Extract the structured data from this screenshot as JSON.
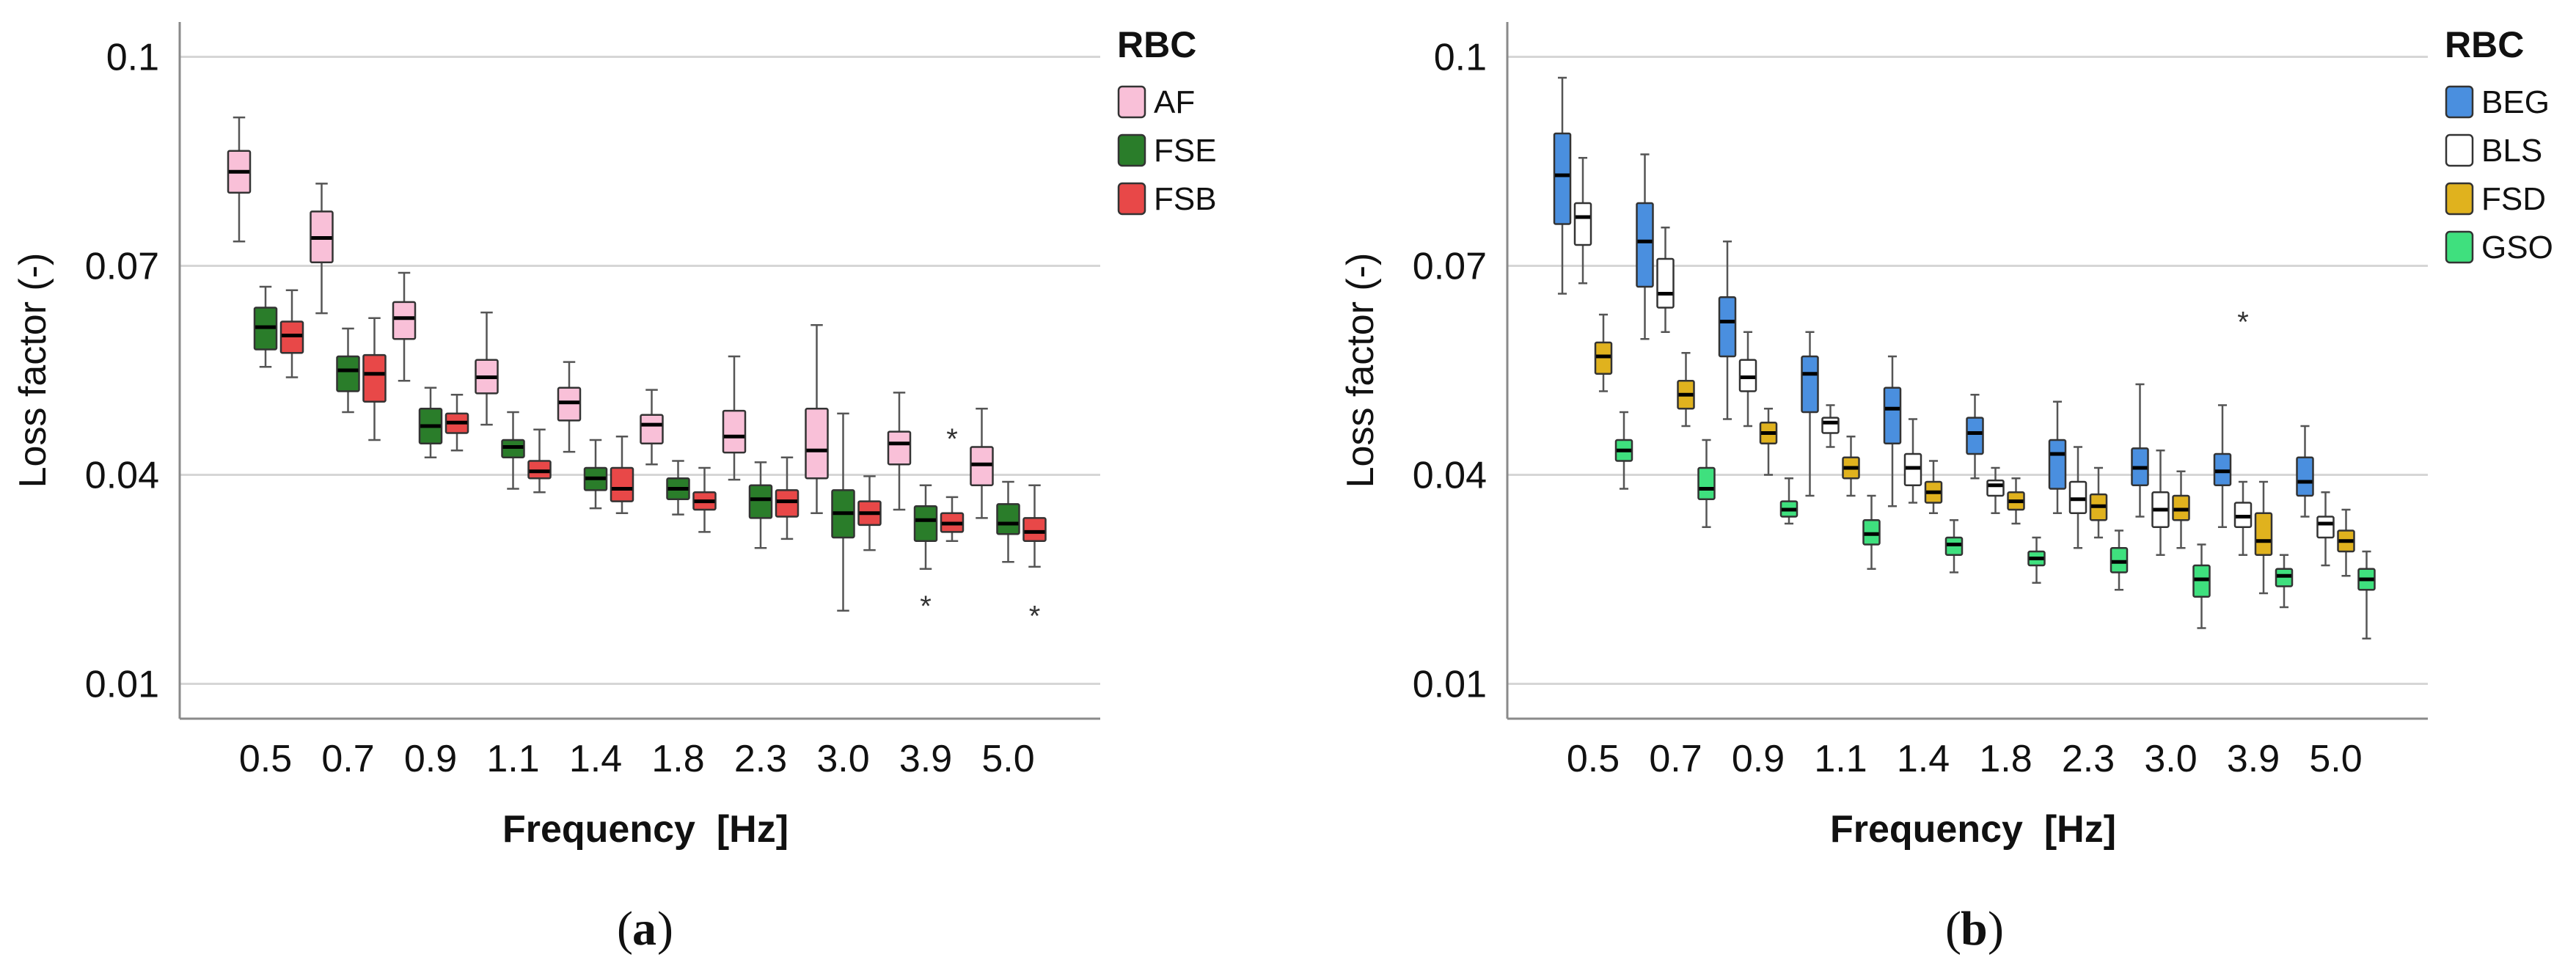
{
  "chart_data": [
    {
      "type": "boxplot",
      "panel_caption": "a",
      "xlabel": "Frequency  [Hz]",
      "ylabel": "Loss factor (-)",
      "ylim": [
        0.005,
        0.105
      ],
      "yticks": [
        0.01,
        0.04,
        0.07,
        0.1
      ],
      "ytick_labels": [
        "0.01",
        "0.04",
        "0.07",
        "0.1"
      ],
      "categories": [
        "0.5",
        "0.7",
        "0.9",
        "1.1",
        "1.4",
        "1.8",
        "2.3",
        "3.0",
        "3.9",
        "5.0"
      ],
      "legend_title": "RBC",
      "legend_position": "right",
      "series": [
        {
          "name": "AF",
          "color": "#f9c0d8",
          "boxes": [
            {
              "min": 0.0735,
              "q1": 0.0805,
              "median": 0.0835,
              "q3": 0.0865,
              "max": 0.0913
            },
            {
              "min": 0.0632,
              "q1": 0.0705,
              "median": 0.074,
              "q3": 0.0778,
              "max": 0.0818
            },
            {
              "min": 0.0535,
              "q1": 0.0595,
              "median": 0.0625,
              "q3": 0.0648,
              "max": 0.069
            },
            {
              "min": 0.0472,
              "q1": 0.0517,
              "median": 0.054,
              "q3": 0.0565,
              "max": 0.0633
            },
            {
              "min": 0.0433,
              "q1": 0.0478,
              "median": 0.0504,
              "q3": 0.0525,
              "max": 0.0562
            },
            {
              "min": 0.0415,
              "q1": 0.0445,
              "median": 0.0472,
              "q3": 0.0486,
              "max": 0.0522
            },
            {
              "min": 0.0393,
              "q1": 0.0432,
              "median": 0.0455,
              "q3": 0.0492,
              "max": 0.057
            },
            {
              "min": 0.0345,
              "q1": 0.0395,
              "median": 0.0435,
              "q3": 0.0495,
              "max": 0.0615
            },
            {
              "min": 0.035,
              "q1": 0.0415,
              "median": 0.0445,
              "q3": 0.0462,
              "max": 0.0518
            },
            {
              "min": 0.0338,
              "q1": 0.0385,
              "median": 0.0415,
              "q3": 0.044,
              "max": 0.0495
            }
          ],
          "outliers": []
        },
        {
          "name": "FSE",
          "color": "#2a7d2a",
          "boxes": [
            {
              "min": 0.0555,
              "q1": 0.058,
              "median": 0.0612,
              "q3": 0.064,
              "max": 0.067
            },
            {
              "min": 0.049,
              "q1": 0.052,
              "median": 0.055,
              "q3": 0.057,
              "max": 0.061
            },
            {
              "min": 0.0425,
              "q1": 0.0445,
              "median": 0.047,
              "q3": 0.0495,
              "max": 0.0525
            },
            {
              "min": 0.038,
              "q1": 0.0425,
              "median": 0.044,
              "q3": 0.045,
              "max": 0.049
            },
            {
              "min": 0.0352,
              "q1": 0.0378,
              "median": 0.0395,
              "q3": 0.041,
              "max": 0.045
            },
            {
              "min": 0.0343,
              "q1": 0.0365,
              "median": 0.038,
              "q3": 0.0395,
              "max": 0.042
            },
            {
              "min": 0.0295,
              "q1": 0.0338,
              "median": 0.0365,
              "q3": 0.0385,
              "max": 0.0418
            },
            {
              "min": 0.0205,
              "q1": 0.031,
              "median": 0.0345,
              "q3": 0.0378,
              "max": 0.0488
            },
            {
              "min": 0.0265,
              "q1": 0.0305,
              "median": 0.0335,
              "q3": 0.0355,
              "max": 0.0385
            },
            {
              "min": 0.0275,
              "q1": 0.0315,
              "median": 0.033,
              "q3": 0.0358,
              "max": 0.039
            }
          ],
          "outliers": [
            {
              "category": "3.9",
              "value": 0.0212
            }
          ]
        },
        {
          "name": "FSB",
          "color": "#e84848",
          "boxes": [
            {
              "min": 0.054,
              "q1": 0.0575,
              "median": 0.06,
              "q3": 0.062,
              "max": 0.0665
            },
            {
              "min": 0.045,
              "q1": 0.0505,
              "median": 0.0545,
              "q3": 0.0572,
              "max": 0.0625
            },
            {
              "min": 0.0435,
              "q1": 0.046,
              "median": 0.0475,
              "q3": 0.0488,
              "max": 0.0515
            },
            {
              "min": 0.0375,
              "q1": 0.0395,
              "median": 0.0405,
              "q3": 0.042,
              "max": 0.0465
            },
            {
              "min": 0.0345,
              "q1": 0.0362,
              "median": 0.038,
              "q3": 0.041,
              "max": 0.0455
            },
            {
              "min": 0.0318,
              "q1": 0.035,
              "median": 0.0362,
              "q3": 0.0375,
              "max": 0.041
            },
            {
              "min": 0.0308,
              "q1": 0.034,
              "median": 0.0362,
              "q3": 0.0378,
              "max": 0.0425
            },
            {
              "min": 0.0292,
              "q1": 0.0328,
              "median": 0.0345,
              "q3": 0.0362,
              "max": 0.0398
            },
            {
              "min": 0.0305,
              "q1": 0.0318,
              "median": 0.033,
              "q3": 0.0345,
              "max": 0.0368
            },
            {
              "min": 0.0268,
              "q1": 0.0305,
              "median": 0.0318,
              "q3": 0.0338,
              "max": 0.0385
            }
          ],
          "outliers": [
            {
              "category": "3.9",
              "value": 0.0452
            },
            {
              "category": "5.0",
              "value": 0.0198
            }
          ]
        }
      ]
    },
    {
      "type": "boxplot",
      "panel_caption": "b",
      "xlabel": "Frequency  [Hz]",
      "ylabel": "Loss factor (-)",
      "ylim": [
        0.005,
        0.105
      ],
      "yticks": [
        0.01,
        0.04,
        0.07,
        0.1
      ],
      "ytick_labels": [
        "0.01",
        "0.04",
        "0.07",
        "0.1"
      ],
      "categories": [
        "0.5",
        "0.7",
        "0.9",
        "1.1",
        "1.4",
        "1.8",
        "2.3",
        "3.0",
        "3.9",
        "5.0"
      ],
      "legend_title": "RBC",
      "legend_position": "right",
      "series": [
        {
          "name": "BEG",
          "color": "#4a8fdf",
          "boxes": [
            {
              "min": 0.066,
              "q1": 0.076,
              "median": 0.083,
              "q3": 0.089,
              "max": 0.097
            },
            {
              "min": 0.0595,
              "q1": 0.067,
              "median": 0.0735,
              "q3": 0.079,
              "max": 0.086
            },
            {
              "min": 0.048,
              "q1": 0.057,
              "median": 0.062,
              "q3": 0.0655,
              "max": 0.0735
            },
            {
              "min": 0.037,
              "q1": 0.049,
              "median": 0.0545,
              "q3": 0.057,
              "max": 0.0605
            },
            {
              "min": 0.0355,
              "q1": 0.0445,
              "median": 0.0495,
              "q3": 0.0525,
              "max": 0.057
            },
            {
              "min": 0.0395,
              "q1": 0.043,
              "median": 0.046,
              "q3": 0.0482,
              "max": 0.0515
            },
            {
              "min": 0.0345,
              "q1": 0.038,
              "median": 0.043,
              "q3": 0.045,
              "max": 0.0505
            },
            {
              "min": 0.034,
              "q1": 0.0385,
              "median": 0.041,
              "q3": 0.0438,
              "max": 0.053
            },
            {
              "min": 0.0325,
              "q1": 0.0385,
              "median": 0.0405,
              "q3": 0.043,
              "max": 0.05
            },
            {
              "min": 0.034,
              "q1": 0.037,
              "median": 0.039,
              "q3": 0.0425,
              "max": 0.047
            }
          ],
          "outliers": []
        },
        {
          "name": "BLS",
          "color": "#ffffff",
          "boxes": [
            {
              "min": 0.0675,
              "q1": 0.073,
              "median": 0.077,
              "q3": 0.079,
              "max": 0.0855
            },
            {
              "min": 0.0605,
              "q1": 0.064,
              "median": 0.066,
              "q3": 0.071,
              "max": 0.0755
            },
            {
              "min": 0.047,
              "q1": 0.052,
              "median": 0.054,
              "q3": 0.0565,
              "max": 0.0605
            },
            {
              "min": 0.044,
              "q1": 0.046,
              "median": 0.0475,
              "q3": 0.0482,
              "max": 0.05
            },
            {
              "min": 0.036,
              "q1": 0.0385,
              "median": 0.041,
              "q3": 0.043,
              "max": 0.048
            },
            {
              "min": 0.0345,
              "q1": 0.037,
              "median": 0.0385,
              "q3": 0.0392,
              "max": 0.041
            },
            {
              "min": 0.0295,
              "q1": 0.0345,
              "median": 0.0365,
              "q3": 0.039,
              "max": 0.044
            },
            {
              "min": 0.0285,
              "q1": 0.0325,
              "median": 0.035,
              "q3": 0.0375,
              "max": 0.0435
            },
            {
              "min": 0.0285,
              "q1": 0.0325,
              "median": 0.034,
              "q3": 0.036,
              "max": 0.039
            },
            {
              "min": 0.027,
              "q1": 0.031,
              "median": 0.033,
              "q3": 0.034,
              "max": 0.0375
            }
          ],
          "outliers": [
            {
              "category": "3.9",
              "value": 0.062
            }
          ]
        },
        {
          "name": "FSD",
          "color": "#e0b21e",
          "boxes": [
            {
              "min": 0.052,
              "q1": 0.0545,
              "median": 0.057,
              "q3": 0.059,
              "max": 0.063
            },
            {
              "min": 0.047,
              "q1": 0.0495,
              "median": 0.0515,
              "q3": 0.0535,
              "max": 0.0575
            },
            {
              "min": 0.04,
              "q1": 0.0445,
              "median": 0.046,
              "q3": 0.0475,
              "max": 0.0495
            },
            {
              "min": 0.037,
              "q1": 0.0395,
              "median": 0.041,
              "q3": 0.0425,
              "max": 0.0455
            },
            {
              "min": 0.0345,
              "q1": 0.036,
              "median": 0.0375,
              "q3": 0.039,
              "max": 0.042
            },
            {
              "min": 0.033,
              "q1": 0.035,
              "median": 0.0362,
              "q3": 0.0375,
              "max": 0.0395
            },
            {
              "min": 0.031,
              "q1": 0.0335,
              "median": 0.0355,
              "q3": 0.0372,
              "max": 0.041
            },
            {
              "min": 0.0295,
              "q1": 0.0335,
              "median": 0.035,
              "q3": 0.037,
              "max": 0.0405
            },
            {
              "min": 0.023,
              "q1": 0.0285,
              "median": 0.0305,
              "q3": 0.0345,
              "max": 0.039
            },
            {
              "min": 0.0255,
              "q1": 0.029,
              "median": 0.0305,
              "q3": 0.032,
              "max": 0.035
            }
          ],
          "outliers": []
        },
        {
          "name": "GSO",
          "color": "#3fe07e",
          "boxes": [
            {
              "min": 0.038,
              "q1": 0.042,
              "median": 0.0435,
              "q3": 0.045,
              "max": 0.049
            },
            {
              "min": 0.0325,
              "q1": 0.0365,
              "median": 0.038,
              "q3": 0.041,
              "max": 0.045
            },
            {
              "min": 0.033,
              "q1": 0.034,
              "median": 0.035,
              "q3": 0.0362,
              "max": 0.0395
            },
            {
              "min": 0.0265,
              "q1": 0.03,
              "median": 0.0315,
              "q3": 0.0335,
              "max": 0.037
            },
            {
              "min": 0.026,
              "q1": 0.0285,
              "median": 0.03,
              "q3": 0.031,
              "max": 0.0335
            },
            {
              "min": 0.0245,
              "q1": 0.027,
              "median": 0.028,
              "q3": 0.029,
              "max": 0.031
            },
            {
              "min": 0.0235,
              "q1": 0.026,
              "median": 0.0275,
              "q3": 0.0295,
              "max": 0.032
            },
            {
              "min": 0.018,
              "q1": 0.0225,
              "median": 0.025,
              "q3": 0.027,
              "max": 0.03
            },
            {
              "min": 0.021,
              "q1": 0.024,
              "median": 0.0255,
              "q3": 0.0265,
              "max": 0.0285
            },
            {
              "min": 0.0165,
              "q1": 0.0235,
              "median": 0.025,
              "q3": 0.0265,
              "max": 0.029
            }
          ],
          "outliers": []
        }
      ]
    }
  ]
}
